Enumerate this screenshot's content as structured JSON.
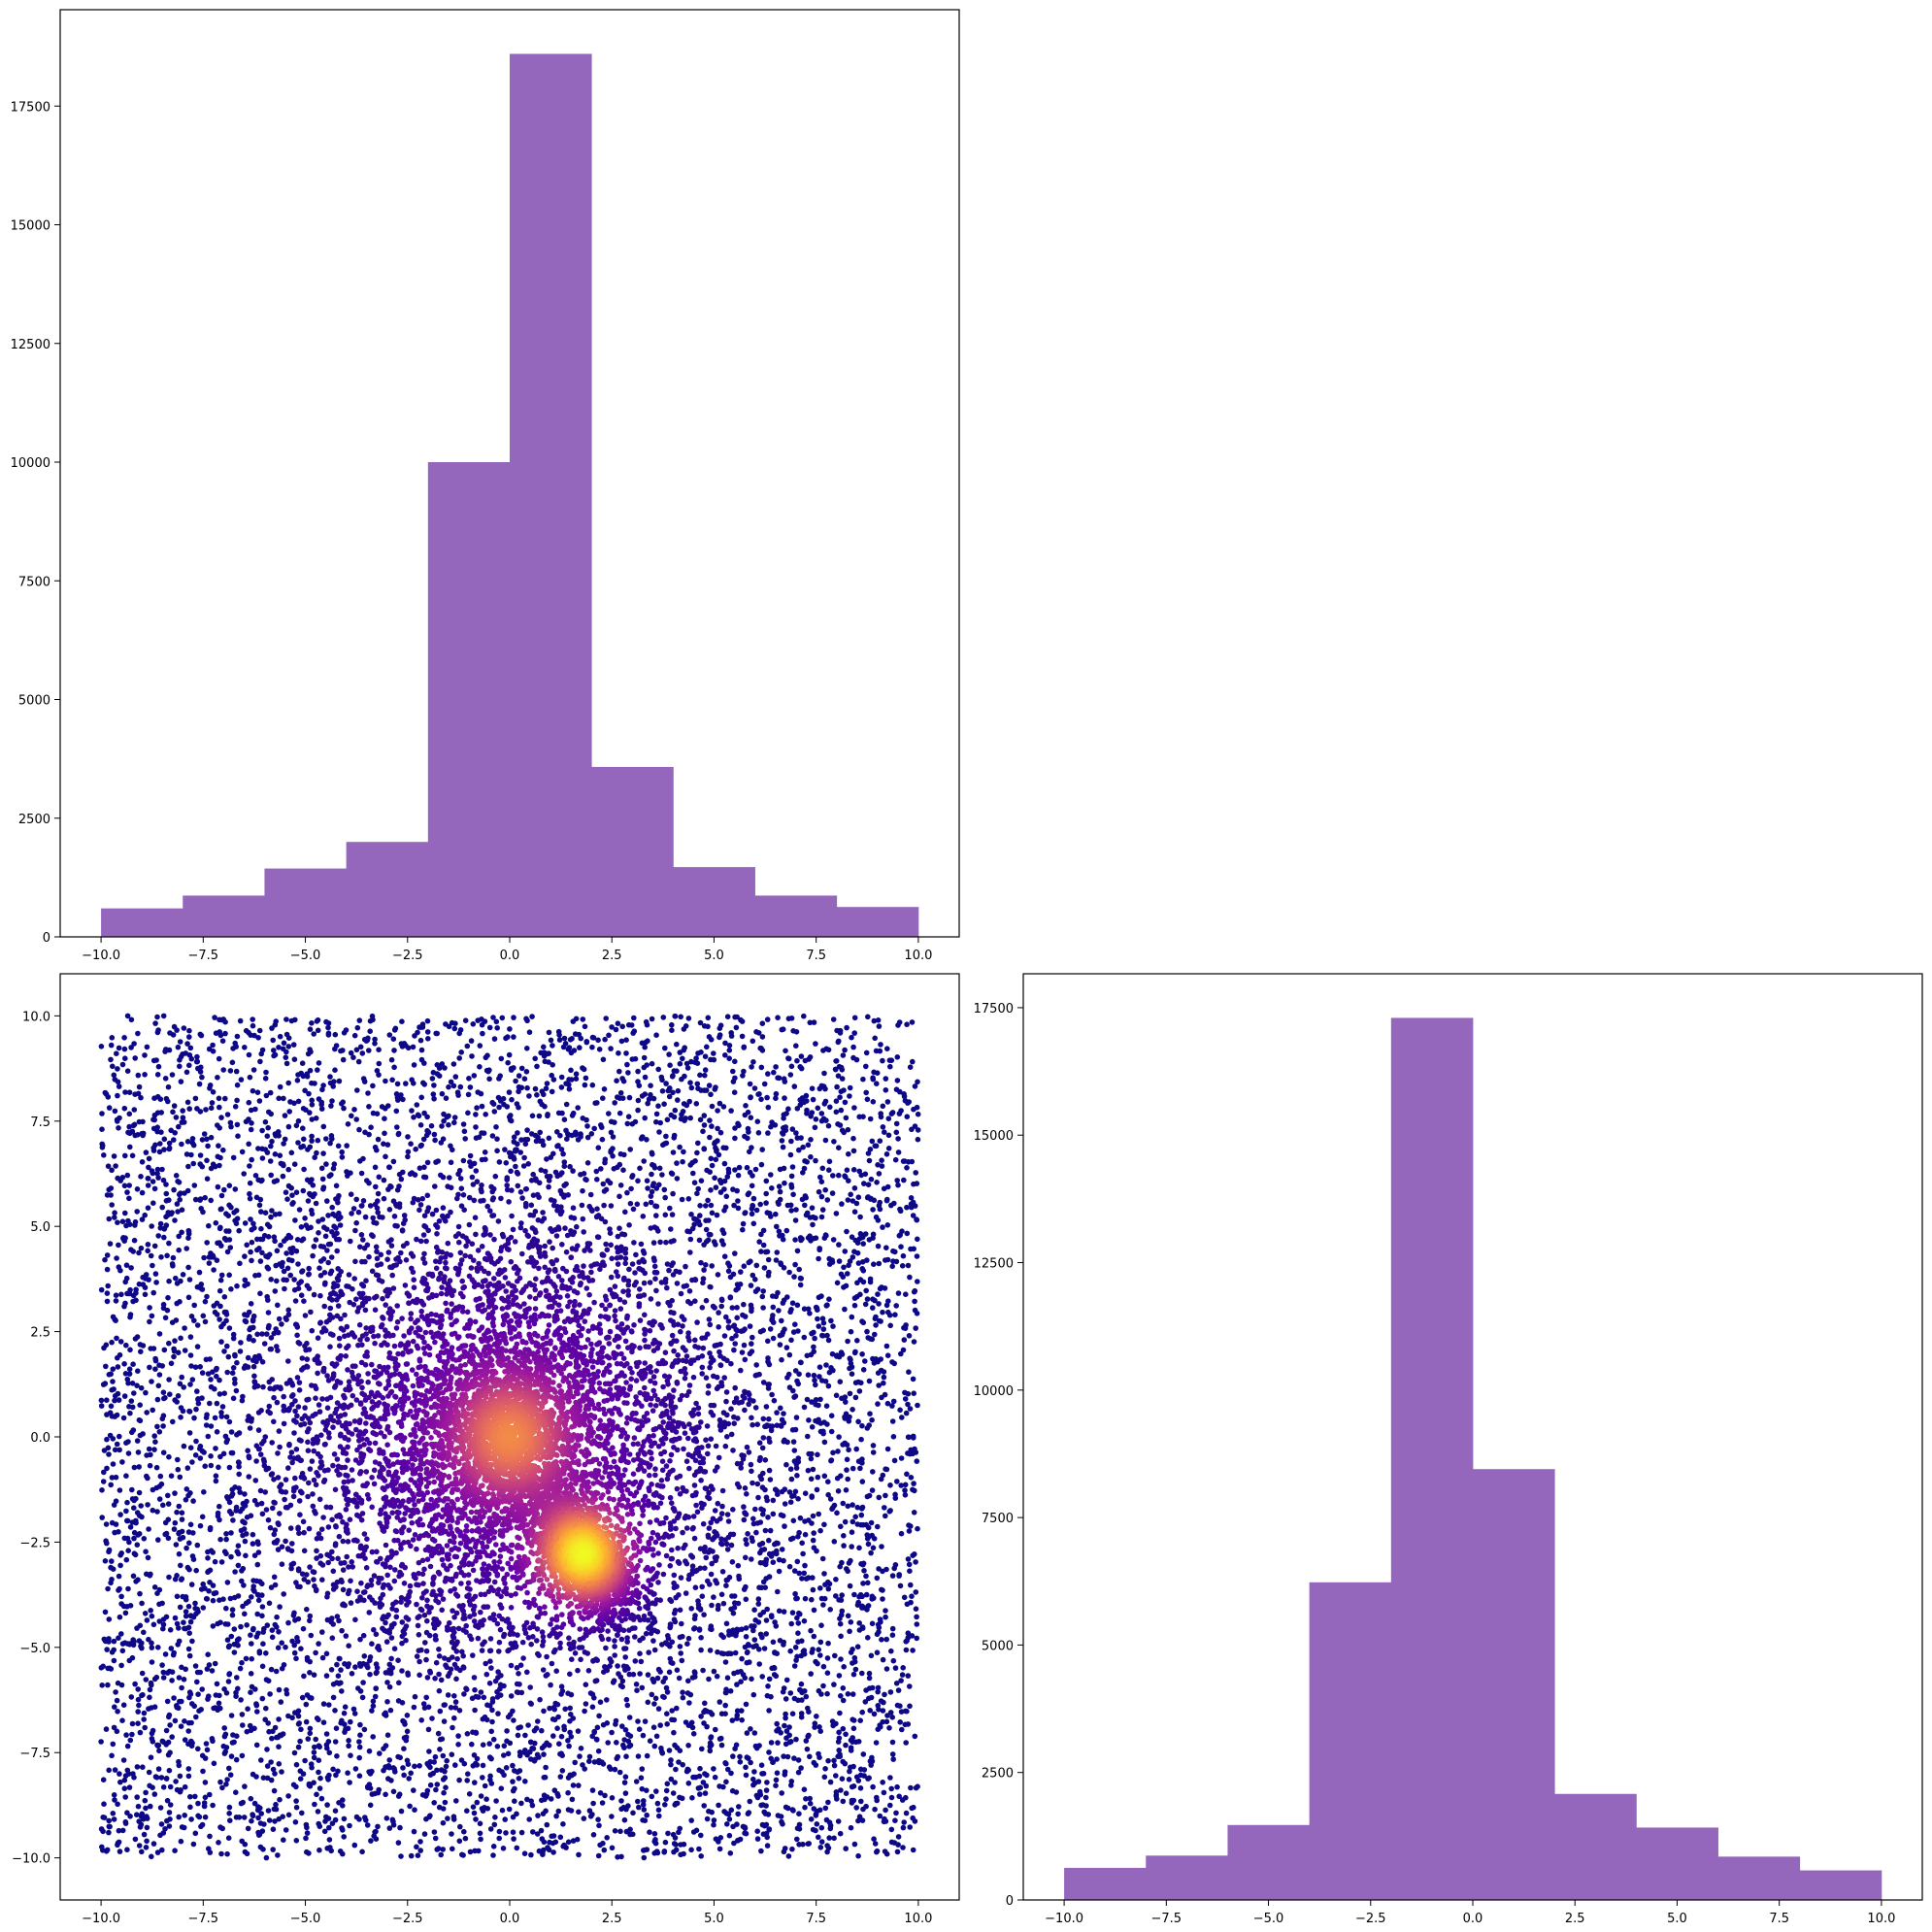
{
  "figure": {
    "background": "#ffffff",
    "bar_color": "#9467bd"
  },
  "chart_data": [
    {
      "id": "hist-x",
      "type": "bar",
      "subtype": "histogram",
      "bin_edges": [
        -10,
        -8,
        -6,
        -4,
        -2,
        0,
        2,
        4,
        6,
        8,
        10
      ],
      "values": [
        600,
        870,
        1440,
        2000,
        10000,
        18600,
        3580,
        1470,
        870,
        630
      ],
      "xlim": [
        -11,
        11
      ],
      "ylim": [
        0,
        19530
      ],
      "xticks": [
        -10,
        -7.5,
        -5,
        -2.5,
        0,
        2.5,
        5,
        7.5,
        10
      ],
      "xtick_labels": [
        "−10.0",
        "−7.5",
        "−5.0",
        "−2.5",
        "0.0",
        "2.5",
        "5.0",
        "7.5",
        "10.0"
      ],
      "yticks": [
        0,
        2500,
        5000,
        7500,
        10000,
        12500,
        15000,
        17500
      ],
      "ytick_labels": [
        "0",
        "2500",
        "5000",
        "7500",
        "10000",
        "12500",
        "15000",
        "17500"
      ],
      "color": "#9467bd",
      "grid": false,
      "title": "",
      "xlabel": "",
      "ylabel": ""
    },
    {
      "id": "scatter-xy",
      "type": "scatter",
      "n_points": 14000,
      "description_density": "uniform background over [-10,10]x[-10,10] plus a dense core near (0,0) and a second lobe near (1.8,-2.8)",
      "density_centers": [
        {
          "x": 0,
          "y": 0
        },
        {
          "x": 1.8,
          "y": -2.8
        }
      ],
      "xlim": [
        -11,
        11
      ],
      "ylim": [
        -11,
        11
      ],
      "xticks": [
        -10,
        -7.5,
        -5,
        -2.5,
        0,
        2.5,
        5,
        7.5,
        10
      ],
      "xtick_labels": [
        "−10.0",
        "−7.5",
        "−5.0",
        "−2.5",
        "0.0",
        "2.5",
        "5.0",
        "7.5",
        "10.0"
      ],
      "yticks": [
        -10,
        -7.5,
        -5,
        -2.5,
        0,
        2.5,
        5,
        7.5,
        10
      ],
      "ytick_labels": [
        "−10.0",
        "−7.5",
        "−5.0",
        "−2.5",
        "0.0",
        "2.5",
        "5.0",
        "7.5",
        "10.0"
      ],
      "colormap": "plasma",
      "colormap_stops": [
        "#0d0887",
        "#5c01a6",
        "#9c179e",
        "#cc4778",
        "#ed7953",
        "#fdb42f",
        "#f0f921"
      ],
      "grid": false,
      "title": "",
      "xlabel": "",
      "ylabel": ""
    },
    {
      "id": "hist-y",
      "type": "bar",
      "subtype": "histogram",
      "bin_edges": [
        -10,
        -8,
        -6,
        -4,
        -2,
        0,
        2,
        4,
        6,
        8,
        10
      ],
      "values": [
        630,
        870,
        1470,
        6230,
        17300,
        8450,
        2080,
        1420,
        850,
        580
      ],
      "xlim": [
        -11,
        11
      ],
      "ylim": [
        0,
        18165
      ],
      "xticks": [
        -10,
        -7.5,
        -5,
        -2.5,
        0,
        2.5,
        5,
        7.5,
        10
      ],
      "xtick_labels": [
        "−10.0",
        "−7.5",
        "−5.0",
        "−2.5",
        "0.0",
        "2.5",
        "5.0",
        "7.5",
        "10.0"
      ],
      "yticks": [
        0,
        2500,
        5000,
        7500,
        10000,
        12500,
        15000,
        17500
      ],
      "ytick_labels": [
        "0",
        "2500",
        "5000",
        "7500",
        "10000",
        "12500",
        "15000",
        "17500"
      ],
      "color": "#9467bd",
      "grid": false,
      "title": "",
      "xlabel": "",
      "ylabel": ""
    }
  ]
}
